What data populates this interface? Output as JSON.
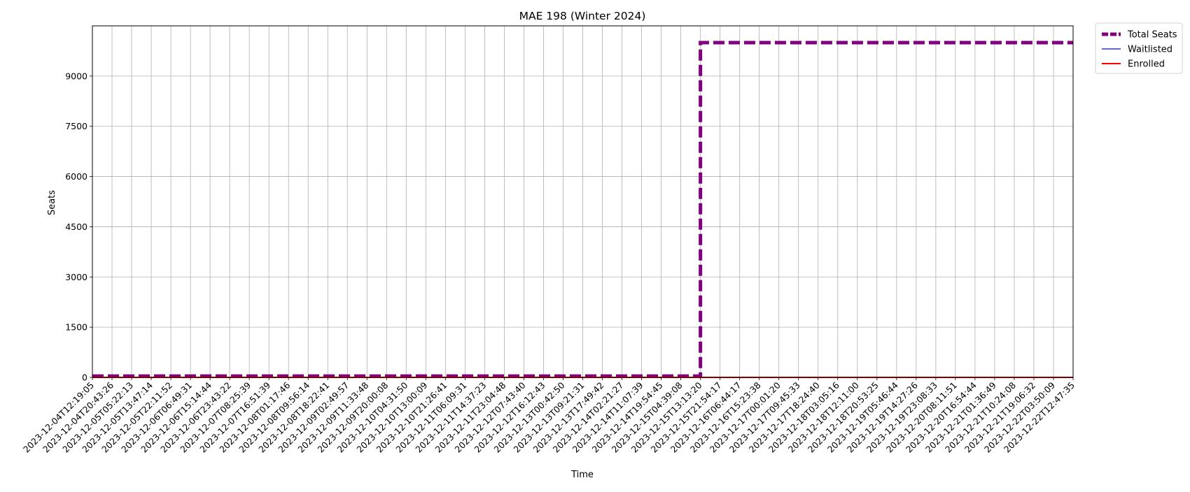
{
  "chart_data": {
    "type": "line",
    "title": "MAE 198 (Winter 2024)",
    "xlabel": "Time",
    "ylabel": "Seats",
    "x": [
      "2023-12-04T12:19:05",
      "2023-12-04T20:43:26",
      "2023-12-05T05:22:13",
      "2023-12-05T13:47:14",
      "2023-12-05T22:11:52",
      "2023-12-06T06:49:31",
      "2023-12-06T15:14:44",
      "2023-12-06T23:43:22",
      "2023-12-07T08:25:39",
      "2023-12-07T16:51:39",
      "2023-12-08T01:17:46",
      "2023-12-08T09:56:14",
      "2023-12-08T18:22:41",
      "2023-12-09T02:49:57",
      "2023-12-09T11:33:48",
      "2023-12-09T20:00:08",
      "2023-12-10T04:31:50",
      "2023-12-10T13:00:09",
      "2023-12-10T21:26:41",
      "2023-12-11T06:09:31",
      "2023-12-11T14:37:23",
      "2023-12-11T23:04:48",
      "2023-12-12T07:43:40",
      "2023-12-12T16:12:43",
      "2023-12-13T00:42:50",
      "2023-12-13T09:21:31",
      "2023-12-13T17:49:42",
      "2023-12-14T02:21:27",
      "2023-12-14T11:07:39",
      "2023-12-14T19:54:45",
      "2023-12-15T04:39:08",
      "2023-12-15T13:13:20",
      "2023-12-15T21:54:17",
      "2023-12-16T06:44:17",
      "2023-12-16T15:23:38",
      "2023-12-17T00:01:20",
      "2023-12-17T09:45:33",
      "2023-12-17T18:24:40",
      "2023-12-18T03:05:16",
      "2023-12-18T12:11:00",
      "2023-12-18T20:53:25",
      "2023-12-19T05:46:44",
      "2023-12-19T14:27:26",
      "2023-12-19T23:08:33",
      "2023-12-20T08:11:51",
      "2023-12-20T16:54:44",
      "2023-12-21T01:36:49",
      "2023-12-21T10:24:08",
      "2023-12-21T19:06:32",
      "2023-12-22T03:50:09",
      "2023-12-22T12:47:35"
    ],
    "series": [
      {
        "name": "Total Seats",
        "color": "#800080",
        "style": "dashed",
        "values": [
          40,
          40,
          40,
          40,
          40,
          40,
          40,
          40,
          40,
          40,
          40,
          40,
          40,
          40,
          40,
          40,
          40,
          40,
          40,
          40,
          40,
          40,
          40,
          40,
          40,
          40,
          40,
          40,
          40,
          40,
          40,
          9999,
          9999,
          9999,
          9999,
          9999,
          9999,
          9999,
          9999,
          9999,
          9999,
          9999,
          9999,
          9999,
          9999,
          9999,
          9999,
          9999,
          9999,
          9999,
          9999
        ]
      },
      {
        "name": "Waitlisted",
        "color": "#0000ff",
        "style": "solid",
        "values": [
          0,
          0,
          0,
          0,
          0,
          0,
          0,
          0,
          0,
          0,
          0,
          0,
          0,
          0,
          0,
          0,
          0,
          0,
          0,
          0,
          0,
          0,
          0,
          0,
          0,
          0,
          0,
          0,
          0,
          0,
          0,
          0,
          0,
          0,
          0,
          0,
          0,
          0,
          0,
          0,
          0,
          0,
          0,
          0,
          0,
          0,
          0,
          0,
          0,
          0,
          0
        ]
      },
      {
        "name": "Enrolled",
        "color": "#ff0000",
        "style": "solid",
        "values": [
          0,
          0,
          0,
          0,
          0,
          0,
          0,
          0,
          0,
          0,
          0,
          0,
          0,
          0,
          0,
          0,
          0,
          0,
          0,
          0,
          0,
          0,
          0,
          0,
          0,
          0,
          0,
          0,
          0,
          0,
          0,
          0,
          0,
          0,
          0,
          0,
          0,
          0,
          0,
          0,
          0,
          0,
          0,
          0,
          0,
          0,
          0,
          0,
          0,
          0,
          0
        ]
      }
    ],
    "yticks": [
      0,
      1500,
      3000,
      4500,
      6000,
      7500,
      9000
    ],
    "ylim": [
      0,
      10500
    ],
    "step": "post",
    "grid": true,
    "legend_position": "outside-top-right"
  }
}
